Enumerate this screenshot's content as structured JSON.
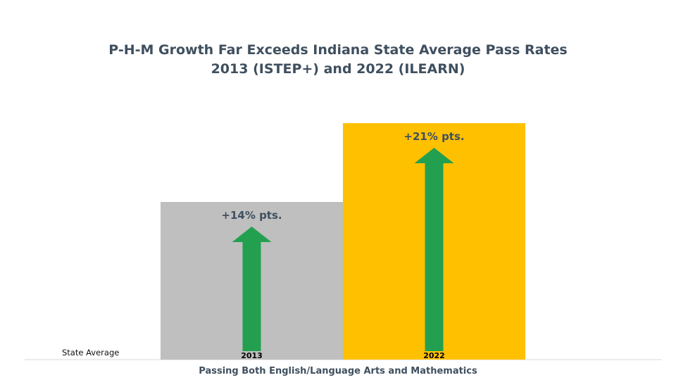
{
  "chart_data": {
    "type": "bar",
    "title": [
      "P-H-M Growth Far Exceeds Indiana State Average Pass Rates",
      "2013 (ISTEP+) and 2022 (ILEARN)"
    ],
    "categories": [
      "2013",
      "2022"
    ],
    "values": [
      14,
      21
    ],
    "bar_labels": [
      "+14% pts.",
      "+21% pts."
    ],
    "reference_label": "State Average",
    "xlabel": "Passing Both English/Language Arts and Mathematics",
    "ylabel": "",
    "ylim": [
      0,
      21
    ],
    "grid": false,
    "colors": {
      "bars": [
        "#bfbfbf",
        "#ffc000"
      ],
      "arrow": "#22a050",
      "text": "#3f4f5f",
      "axis": "#d9d9d9"
    }
  }
}
